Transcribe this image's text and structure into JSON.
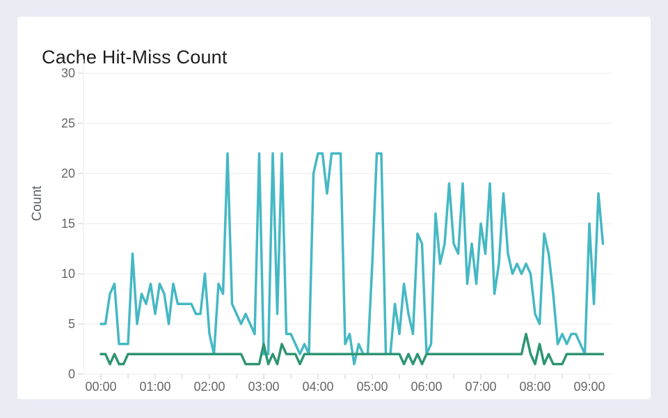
{
  "page": {
    "background_color": "#e8ebf2",
    "panel_color": "#ffffff"
  },
  "chart": {
    "title": "Cache Hit-Miss Count",
    "title_color": "#1e1e1e",
    "tick_label_color": "#666666",
    "axis_label_color": "#5c6166",
    "grid_color": "#e8e8e8",
    "tick_mark_color": "#c9c9c9",
    "y_axis_label": "Count"
  },
  "chart_data": {
    "type": "line",
    "title": "Cache Hit-Miss Count",
    "xlabel": "",
    "ylabel": "Count",
    "ylim": [
      0,
      30
    ],
    "y_ticks": [
      0,
      5,
      10,
      15,
      20,
      25,
      30
    ],
    "x_tick_labels": [
      "00:00",
      "01:00",
      "02:00",
      "03:00",
      "04:00",
      "05:00",
      "06:00",
      "07:00",
      "08:00",
      "09:00"
    ],
    "x_start": "00:00",
    "x_step_minutes": 5,
    "x_minor_tick_minutes": 30,
    "grid": "horizontal-only",
    "legend": "none",
    "series": [
      {
        "name": "cyan-series",
        "color": "#45b8c4",
        "values": [
          5,
          5,
          8,
          9,
          3,
          3,
          3,
          12,
          5,
          8,
          7,
          9,
          6,
          9,
          8,
          5,
          9,
          7,
          7,
          7,
          7,
          6,
          6,
          10,
          4,
          2,
          9,
          8,
          22,
          7,
          6,
          5,
          6,
          5,
          4,
          22,
          2,
          2,
          22,
          6,
          22,
          4,
          4,
          3,
          2,
          3,
          2,
          20,
          22,
          22,
          18,
          22,
          22,
          22,
          3,
          4,
          1,
          3,
          2,
          2,
          11,
          22,
          22,
          2,
          2,
          7,
          4,
          9,
          6,
          4,
          14,
          13,
          2,
          3,
          16,
          11,
          13,
          19,
          13,
          12,
          19,
          9,
          13,
          9,
          15,
          12,
          19,
          8,
          11,
          18,
          12,
          10,
          11,
          10,
          11,
          10,
          6,
          5,
          14,
          12,
          8,
          3,
          4,
          3,
          4,
          4,
          3,
          2,
          15,
          7,
          18,
          13
        ]
      },
      {
        "name": "green-series",
        "color": "#2f9474",
        "values": [
          2,
          2,
          1,
          2,
          1,
          1,
          2,
          2,
          2,
          2,
          2,
          2,
          2,
          2,
          2,
          2,
          2,
          2,
          2,
          2,
          2,
          2,
          2,
          2,
          2,
          2,
          2,
          2,
          2,
          2,
          2,
          2,
          1,
          1,
          1,
          1,
          3,
          1,
          2,
          1,
          3,
          2,
          2,
          2,
          1,
          2,
          2,
          2,
          2,
          2,
          2,
          2,
          2,
          2,
          2,
          2,
          2,
          2,
          2,
          2,
          2,
          2,
          2,
          2,
          2,
          2,
          2,
          1,
          2,
          1,
          2,
          1,
          2,
          2,
          2,
          2,
          2,
          2,
          2,
          2,
          2,
          2,
          2,
          2,
          2,
          2,
          2,
          2,
          2,
          2,
          2,
          2,
          2,
          2,
          4,
          2,
          1,
          3,
          1,
          2,
          1,
          1,
          1,
          2,
          2,
          2,
          2,
          2,
          2,
          2,
          2,
          2
        ]
      }
    ]
  }
}
